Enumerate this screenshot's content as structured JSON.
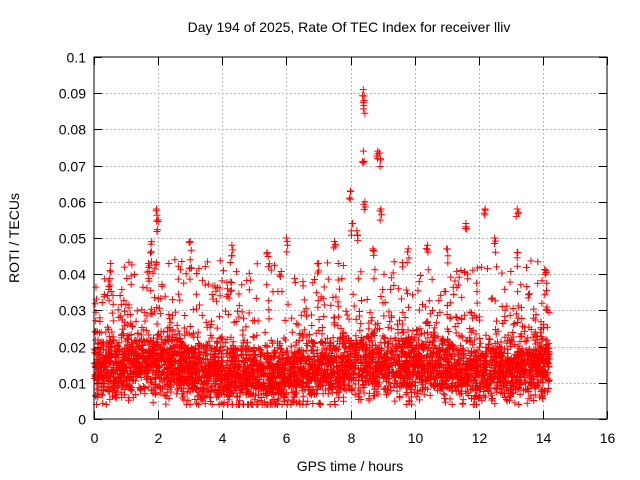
{
  "chart_data": {
    "type": "scatter",
    "title": "Day 194 of 2025, Rate Of TEC Index for receiver lliv",
    "xlabel": "GPS time / hours",
    "ylabel": "ROTI / TECUs",
    "xlim": [
      0,
      16
    ],
    "ylim": [
      0,
      0.1
    ],
    "xticks": [
      0,
      2,
      4,
      6,
      8,
      10,
      12,
      14,
      16
    ],
    "xtick_labels": [
      "0",
      "2",
      "4",
      "6",
      "8",
      "10",
      "12",
      "14",
      "16"
    ],
    "yticks": [
      0,
      0.01,
      0.02,
      0.03,
      0.04,
      0.05,
      0.06,
      0.07,
      0.08,
      0.09,
      0.1
    ],
    "ytick_labels": [
      "0",
      "0.01",
      "0.02",
      "0.03",
      "0.04",
      "0.05",
      "0.06",
      "0.07",
      "0.08",
      "0.09",
      "0.1"
    ],
    "grid": true,
    "marker": "plus",
    "color": "#ff0000",
    "series": [
      {
        "name": "ROTI",
        "data_range_hours": [
          0,
          14.2
        ],
        "typical_band": [
          0.005,
          0.03
        ],
        "notable_points": [
          {
            "x": 0.5,
            "y": 0.041
          },
          {
            "x": 0.5,
            "y": 0.037
          },
          {
            "x": 1.7,
            "y": 0.043
          },
          {
            "x": 1.8,
            "y": 0.049
          },
          {
            "x": 1.95,
            "y": 0.058
          },
          {
            "x": 2.0,
            "y": 0.055
          },
          {
            "x": 3.0,
            "y": 0.049
          },
          {
            "x": 3.0,
            "y": 0.044
          },
          {
            "x": 4.3,
            "y": 0.048
          },
          {
            "x": 5.4,
            "y": 0.046
          },
          {
            "x": 6.0,
            "y": 0.05
          },
          {
            "x": 7.0,
            "y": 0.043
          },
          {
            "x": 7.5,
            "y": 0.049
          },
          {
            "x": 8.0,
            "y": 0.063
          },
          {
            "x": 8.05,
            "y": 0.054
          },
          {
            "x": 8.2,
            "y": 0.052
          },
          {
            "x": 8.4,
            "y": 0.091
          },
          {
            "x": 8.42,
            "y": 0.088
          },
          {
            "x": 8.4,
            "y": 0.074
          },
          {
            "x": 8.45,
            "y": 0.06
          },
          {
            "x": 8.85,
            "y": 0.074
          },
          {
            "x": 8.9,
            "y": 0.0735
          },
          {
            "x": 8.7,
            "y": 0.047
          },
          {
            "x": 8.95,
            "y": 0.058
          },
          {
            "x": 9.8,
            "y": 0.047
          },
          {
            "x": 10.4,
            "y": 0.048
          },
          {
            "x": 11.0,
            "y": 0.047
          },
          {
            "x": 11.6,
            "y": 0.054
          },
          {
            "x": 12.2,
            "y": 0.058
          },
          {
            "x": 12.5,
            "y": 0.05
          },
          {
            "x": 13.2,
            "y": 0.058
          },
          {
            "x": 13.2,
            "y": 0.046
          },
          {
            "x": 14.1,
            "y": 0.041
          }
        ]
      }
    ]
  }
}
